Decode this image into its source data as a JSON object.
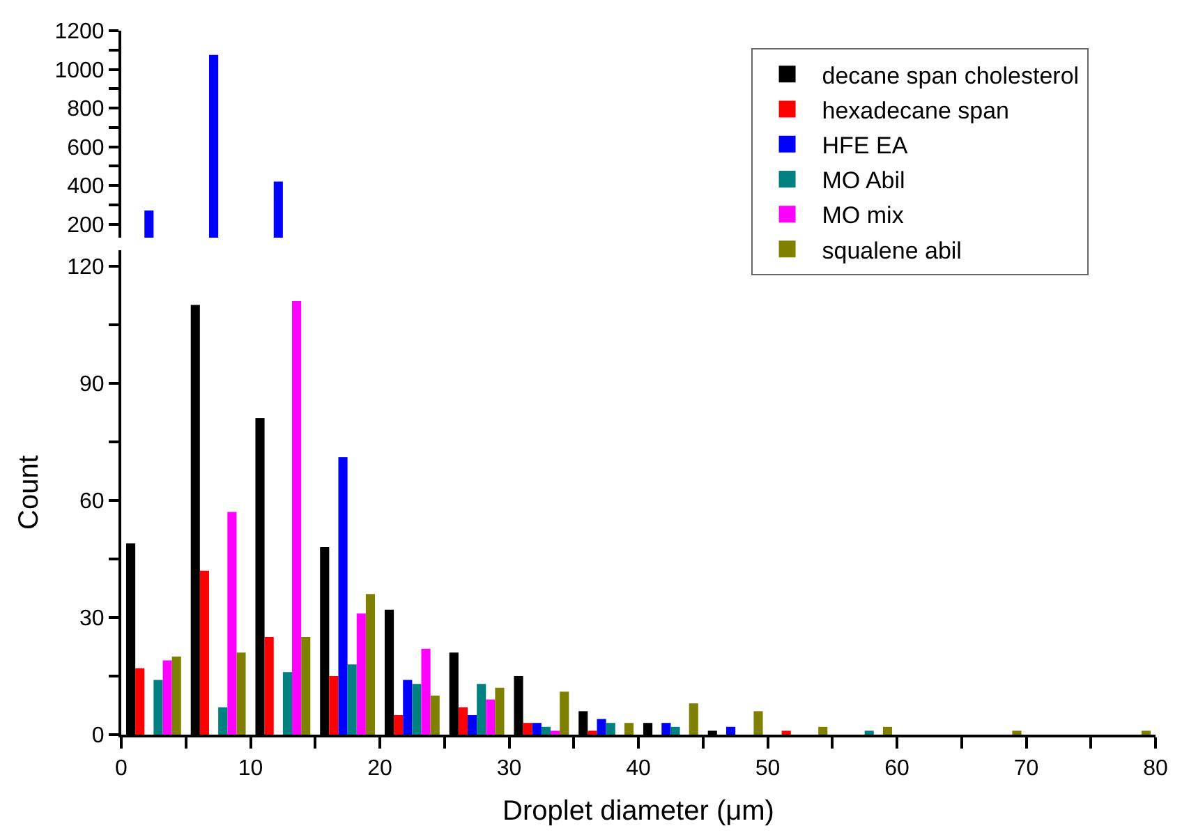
{
  "chart_data": [
    {
      "type": "bar",
      "x": [
        2.5,
        7.5,
        12.5
      ],
      "xlim": [
        0,
        80
      ],
      "xticks": [
        {
          "value": 0,
          "label": null
        },
        {
          "value": 10,
          "label": null
        },
        {
          "value": 20,
          "label": null
        },
        {
          "value": 30,
          "label": null
        },
        {
          "value": 40,
          "label": null
        },
        {
          "value": 50,
          "label": null
        },
        {
          "value": 60,
          "label": null
        },
        {
          "value": 70,
          "label": null
        },
        {
          "value": 80,
          "label": null
        }
      ],
      "ylim": [
        130,
        1200
      ],
      "yticks": [
        200,
        {
          "value": 300,
          "label": null
        },
        400,
        {
          "value": 500,
          "label": null
        },
        600,
        {
          "value": 700,
          "label": null
        },
        800,
        {
          "value": 900,
          "label": null
        },
        1000,
        {
          "value": 1100,
          "label": null
        },
        1200
      ],
      "tick_labels": "y",
      "grid": false,
      "legend": false,
      "series": [
        {
          "color": "#000000",
          "values": [
            null,
            null,
            null
          ]
        },
        {
          "color": "#ff0000",
          "values": [
            null,
            null,
            null
          ]
        },
        {
          "color": "#0000ff",
          "values": [
            270,
            1075,
            420
          ]
        },
        {
          "color": "#008080",
          "values": [
            null,
            null,
            null
          ]
        },
        {
          "color": "#ff00ff",
          "values": [
            null,
            null,
            null
          ]
        },
        {
          "color": "#808000",
          "values": [
            null,
            null,
            null
          ]
        }
      ]
    },
    {
      "type": "bar",
      "xlabel": "Droplet diameter (μm)",
      "ylabel": "Count",
      "x": [
        2.5,
        7.5,
        12.5,
        17.5,
        22.5,
        27.5,
        32.5,
        37.5,
        42.5,
        47.5,
        52.5,
        57.5,
        62.5,
        67.5,
        72.5,
        77.5
      ],
      "xlim": [
        0,
        80
      ],
      "xticks": [
        0,
        {
          "value": 5,
          "label": null
        },
        10,
        {
          "value": 15,
          "label": null
        },
        20,
        {
          "value": 25,
          "label": null
        },
        30,
        {
          "value": 35,
          "label": null
        },
        40,
        {
          "value": 45,
          "label": null
        },
        50,
        {
          "value": 55,
          "label": null
        },
        60,
        {
          "value": 65,
          "label": null
        },
        70,
        {
          "value": 75,
          "label": null
        },
        80
      ],
      "ylim": [
        0,
        124
      ],
      "yticks": [
        0,
        {
          "value": 15,
          "label": null
        },
        30,
        {
          "value": 45,
          "label": null
        },
        60,
        {
          "value": 75,
          "label": null
        },
        90,
        {
          "value": 105,
          "label": null
        },
        120
      ],
      "grid": false,
      "legend": "top right",
      "series": [
        {
          "name": "decane span cholesterol",
          "color": "#000000",
          "values": [
            49,
            110,
            81,
            48,
            32,
            21,
            15,
            6,
            3,
            1,
            0,
            0,
            0,
            0,
            0,
            0
          ]
        },
        {
          "name": "hexadecane span",
          "color": "#ff0000",
          "values": [
            17,
            42,
            25,
            15,
            5,
            7,
            3,
            1,
            0,
            0,
            1,
            0,
            0,
            0,
            0,
            0
          ]
        },
        {
          "name": "HFE EA",
          "color": "#0000ff",
          "values": [
            null,
            null,
            null,
            71,
            14,
            5,
            3,
            4,
            3,
            2,
            0,
            0,
            0,
            0,
            0,
            0
          ]
        },
        {
          "name": "MO Abil",
          "color": "#008080",
          "values": [
            14,
            7,
            16,
            18,
            13,
            13,
            2,
            3,
            2,
            0,
            0,
            1,
            0,
            0,
            0,
            0
          ]
        },
        {
          "name": "MO mix",
          "color": "#ff00ff",
          "values": [
            19,
            57,
            111,
            31,
            22,
            9,
            1,
            0,
            0,
            0,
            0,
            0,
            0,
            0,
            0,
            0
          ]
        },
        {
          "name": "squalene abil",
          "color": "#808000",
          "values": [
            20,
            21,
            25,
            36,
            10,
            12,
            11,
            3,
            8,
            6,
            2,
            2,
            0,
            1,
            0,
            1
          ]
        }
      ]
    }
  ]
}
